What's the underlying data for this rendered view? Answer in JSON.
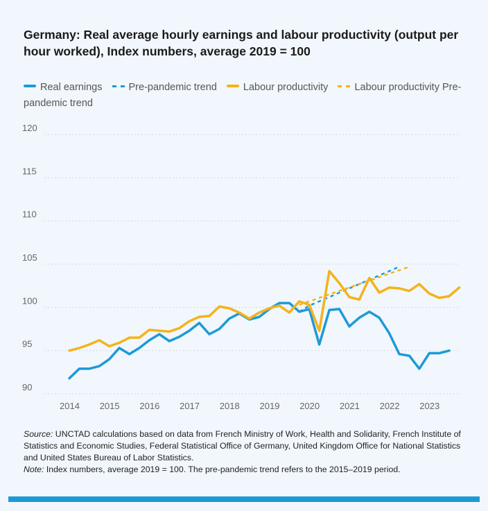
{
  "title": "Germany: Real average hourly earnings and labour productivity (output per hour worked), Index numbers, average 2019 = 100",
  "legend": [
    {
      "label": "Real earnings",
      "color": "#1d9ad6",
      "style": "solid"
    },
    {
      "label": "Pre-pandemic trend",
      "color": "#1d9ad6",
      "style": "dashed"
    },
    {
      "label": "Labour productivity",
      "color": "#f5b21b",
      "style": "solid"
    },
    {
      "label": "Labour productivity Pre-pandemic trend",
      "color": "#f5b21b",
      "style": "dashed"
    }
  ],
  "source": {
    "source_label": "Source:",
    "source_text": " UNCTAD calculations based on data from French Ministry of Work, Health and Solidarity, French Institute of Statistics and Economic Studies, Federal Statistical Office of Germany, United Kingdom Office for National Statistics and United States Bureau of Labor Statistics.",
    "note_label": "Note:",
    "note_text": " Index numbers, average 2019 = 100. The pre-pandemic trend refers to the 2015–2019 period."
  },
  "chart_data": {
    "type": "line",
    "xlabel": "",
    "ylabel": "",
    "ylim": [
      90,
      120
    ],
    "yticks": [
      90,
      95,
      100,
      105,
      110,
      115,
      120
    ],
    "xticks": [
      "2014",
      "2015",
      "2016",
      "2017",
      "2018",
      "2019",
      "2020",
      "2021",
      "2022",
      "2023"
    ],
    "x_quarters": [
      "2014-Q1",
      "2014-Q2",
      "2014-Q3",
      "2014-Q4",
      "2015-Q1",
      "2015-Q2",
      "2015-Q3",
      "2015-Q4",
      "2016-Q1",
      "2016-Q2",
      "2016-Q3",
      "2016-Q4",
      "2017-Q1",
      "2017-Q2",
      "2017-Q3",
      "2017-Q4",
      "2018-Q1",
      "2018-Q2",
      "2018-Q3",
      "2018-Q4",
      "2019-Q1",
      "2019-Q2",
      "2019-Q3",
      "2019-Q4",
      "2020-Q1",
      "2020-Q2",
      "2020-Q3",
      "2020-Q4",
      "2021-Q1",
      "2021-Q2",
      "2021-Q3",
      "2021-Q4",
      "2022-Q1",
      "2022-Q2",
      "2022-Q3",
      "2022-Q4",
      "2023-Q1",
      "2023-Q2",
      "2023-Q3",
      "2023-Q4"
    ],
    "grid": "horizontal",
    "legend_position": "top",
    "series": [
      {
        "name": "Real earnings",
        "color": "#1d9ad6",
        "style": "solid",
        "values": [
          91.8,
          92.9,
          92.9,
          93.2,
          94.0,
          95.3,
          94.6,
          95.3,
          96.2,
          96.9,
          96.1,
          96.6,
          97.3,
          98.2,
          96.9,
          97.5,
          98.7,
          99.3,
          98.6,
          98.9,
          99.8,
          100.5,
          100.5,
          99.5,
          99.8,
          95.7,
          99.7,
          99.8,
          97.8,
          98.8,
          99.5,
          98.8,
          97.0,
          94.6,
          94.4,
          92.9,
          94.7,
          94.7,
          95.0,
          null
        ]
      },
      {
        "name": "Pre-pandemic trend",
        "color": "#1d9ad6",
        "style": "dashed",
        "start_index": 23,
        "values": [
          99.5,
          100.2,
          100.7,
          101.2,
          101.7,
          102.2,
          102.7,
          103.2,
          103.7,
          104.2,
          104.7
        ]
      },
      {
        "name": "Labour productivity",
        "color": "#f5b21b",
        "style": "solid",
        "values": [
          95.0,
          95.3,
          95.7,
          96.2,
          95.5,
          95.9,
          96.5,
          96.5,
          97.4,
          97.3,
          97.2,
          97.6,
          98.4,
          98.9,
          99.0,
          100.1,
          99.9,
          99.4,
          98.7,
          99.4,
          99.9,
          100.2,
          99.4,
          100.7,
          100.3,
          97.3,
          104.2,
          102.8,
          101.2,
          100.9,
          103.4,
          101.7,
          102.3,
          102.2,
          101.9,
          102.7,
          101.6,
          101.1,
          101.3,
          102.3
        ]
      },
      {
        "name": "Labour productivity Pre-pandemic trend",
        "color": "#f5b21b",
        "style": "dashed",
        "start_index": 23,
        "values": [
          100.3,
          100.7,
          101.1,
          101.5,
          101.9,
          102.3,
          102.7,
          103.1,
          103.5,
          103.9,
          104.3,
          104.7
        ]
      }
    ]
  }
}
